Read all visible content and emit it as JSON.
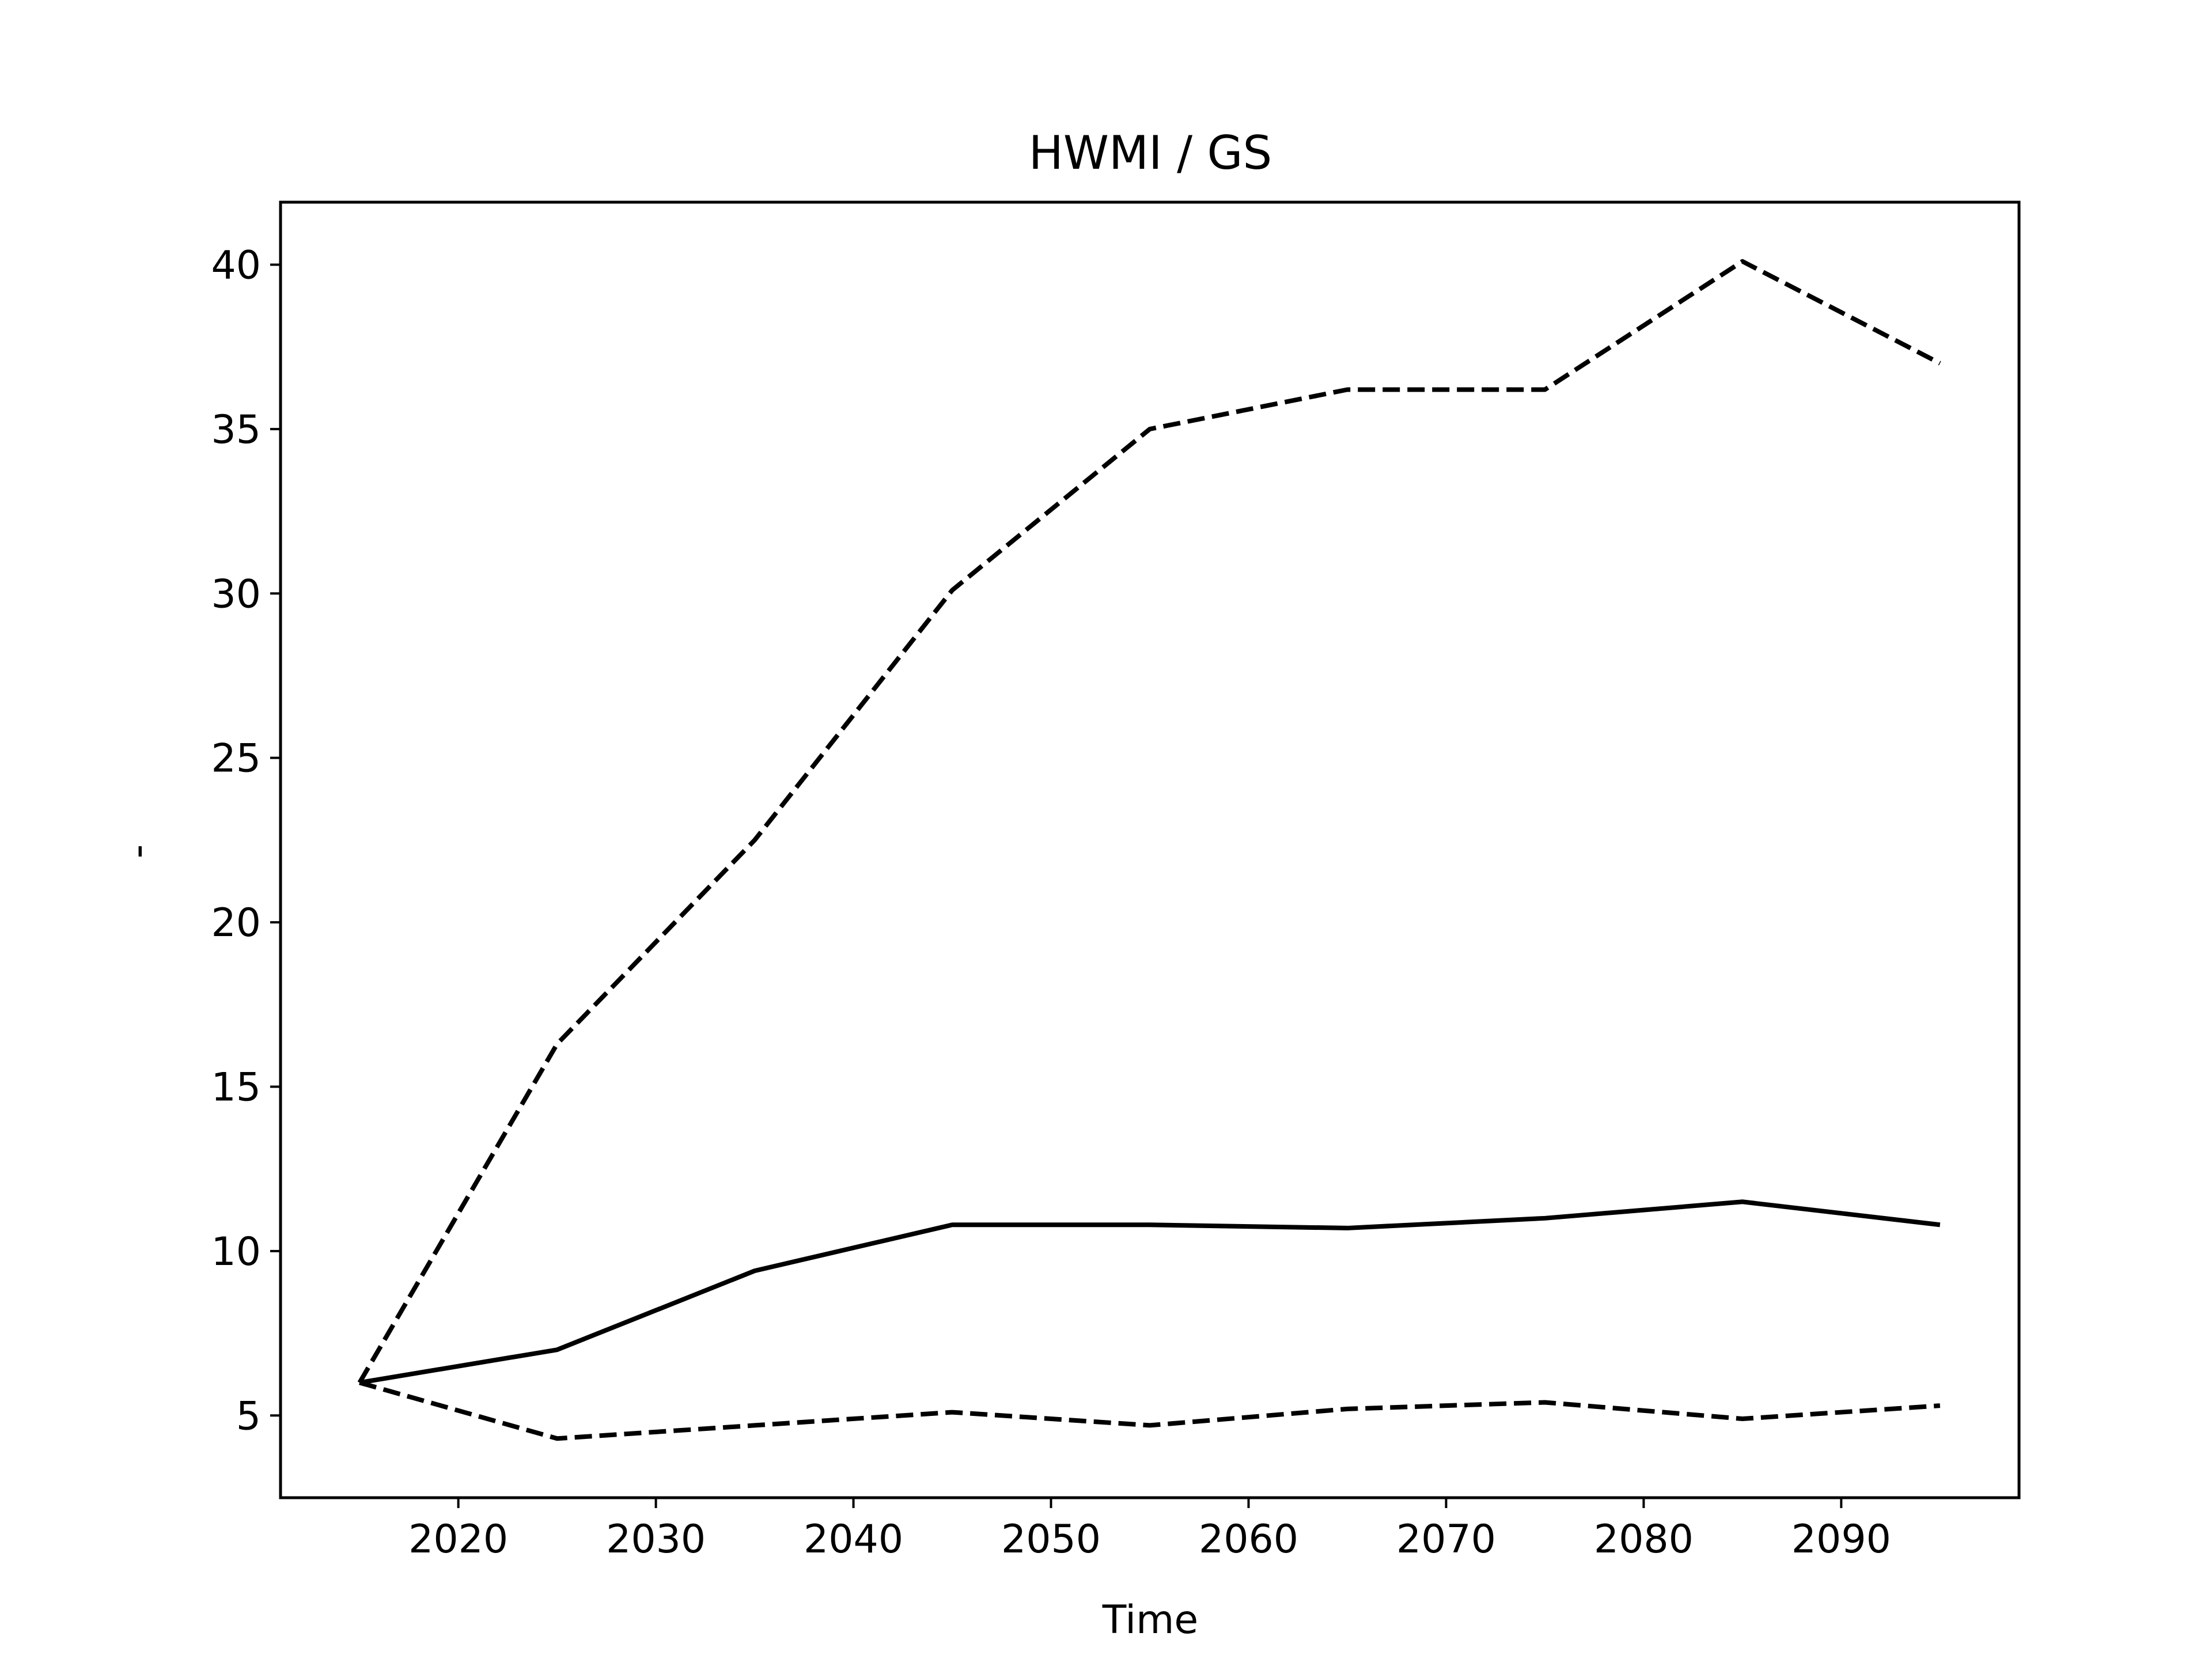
{
  "chart_data": {
    "type": "line",
    "title": "HWMI / GS",
    "xlabel": "Time",
    "ylabel": "-",
    "x": [
      2015,
      2025,
      2035,
      2045,
      2055,
      2065,
      2075,
      2085,
      2095
    ],
    "xlim": [
      2011,
      2099
    ],
    "ylim": [
      2.5,
      41.9
    ],
    "xticks": [
      2020,
      2030,
      2040,
      2050,
      2060,
      2070,
      2080,
      2090
    ],
    "yticks": [
      5,
      10,
      15,
      20,
      25,
      30,
      35,
      40
    ],
    "grid": false,
    "series": [
      {
        "style": "dashed",
        "color": "#000000",
        "values": [
          6.0,
          16.3,
          22.5,
          30.1,
          35.0,
          36.2,
          36.2,
          40.1,
          37.0
        ]
      },
      {
        "style": "solid",
        "color": "#000000",
        "values": [
          6.0,
          7.0,
          9.4,
          10.8,
          10.8,
          10.7,
          11.0,
          11.5,
          10.8
        ]
      },
      {
        "style": "dashed",
        "color": "#000000",
        "values": [
          6.0,
          4.3,
          4.7,
          5.1,
          4.7,
          5.2,
          5.4,
          4.9,
          5.3
        ]
      }
    ]
  }
}
